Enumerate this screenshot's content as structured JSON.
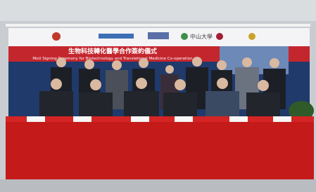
{
  "banner": {
    "logos": [
      "中山大學"
    ],
    "title_zh": "生物科技轉化醫學合作簽約儀式",
    "title_en": "MoU Signing Ceremony for Biotechnology and Translational Medicine Co-operation"
  }
}
